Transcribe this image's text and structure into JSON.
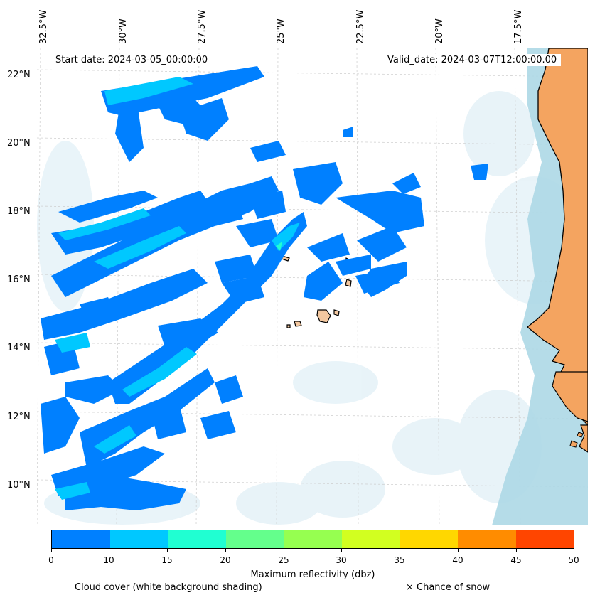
{
  "header": {
    "start_date": "Start date: 2024-03-05_00:00:00",
    "valid_date": "Valid_date: 2024-03-07T12:00:00.00"
  },
  "map": {
    "lon_labels": [
      "32.5°W",
      "30°W",
      "27.5°W",
      "25°W",
      "22.5°W",
      "20°W",
      "17.5°W"
    ],
    "lat_labels": [
      "22°N",
      "20°N",
      "18°N",
      "16°N",
      "14°N",
      "12°N",
      "10°N"
    ],
    "colors": {
      "land": "#f4a460",
      "coast_line": "#000000",
      "ocean_cloud": "#add8e6",
      "cloud_shade": "#e6f2f8",
      "gridline": "#cccccc"
    }
  },
  "colorbar": {
    "title": "Maximum reflectivity (dbz)",
    "ticks": [
      "0",
      "10",
      "15",
      "20",
      "25",
      "30",
      "35",
      "40",
      "45",
      "50"
    ],
    "colors": [
      "#0080ff",
      "#00c8ff",
      "#20ffd2",
      "#64ff8c",
      "#96ff50",
      "#d2ff20",
      "#ffd700",
      "#ff8c00",
      "#ff4500"
    ]
  },
  "footer": {
    "cloud_caption": "Cloud cover (white background shading)",
    "snow_caption": "× Chance of snow"
  }
}
